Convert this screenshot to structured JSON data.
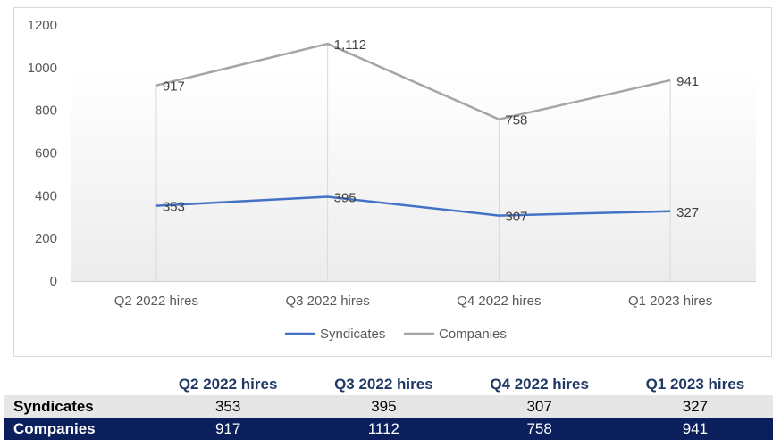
{
  "chart_data": {
    "type": "line",
    "categories": [
      "Q2 2022 hires",
      "Q3 2022 hires",
      "Q4 2022 hires",
      "Q1 2023 hires"
    ],
    "series": [
      {
        "name": "Syndicates",
        "values": [
          353,
          395,
          307,
          327
        ],
        "labels": [
          "353",
          "395",
          "307",
          "327"
        ],
        "color": "#4472c4"
      },
      {
        "name": "Companies",
        "values": [
          917,
          1112,
          758,
          941
        ],
        "labels": [
          "917",
          "1,112",
          "758",
          "941"
        ],
        "color": "#a5a5a5"
      }
    ],
    "ylim": [
      0,
      1200
    ],
    "yticks": [
      "0",
      "200",
      "400",
      "600",
      "800",
      "1000",
      "1200"
    ],
    "legend": "bottom",
    "grid": false
  },
  "table": {
    "headers": [
      "Q2 2022 hires",
      "Q3 2022 hires",
      "Q4 2022 hires",
      "Q1 2023 hires"
    ],
    "rows": [
      {
        "label": "Syndicates",
        "values": [
          "353",
          "395",
          "307",
          "327"
        ]
      },
      {
        "label": "Companies",
        "values": [
          "917",
          "1112",
          "758",
          "941"
        ]
      }
    ],
    "colors": {
      "header_text": "#1f3864",
      "syndicates_row_bg": "#e7e6e6",
      "companies_row_bg": "#0b1f5c"
    }
  }
}
